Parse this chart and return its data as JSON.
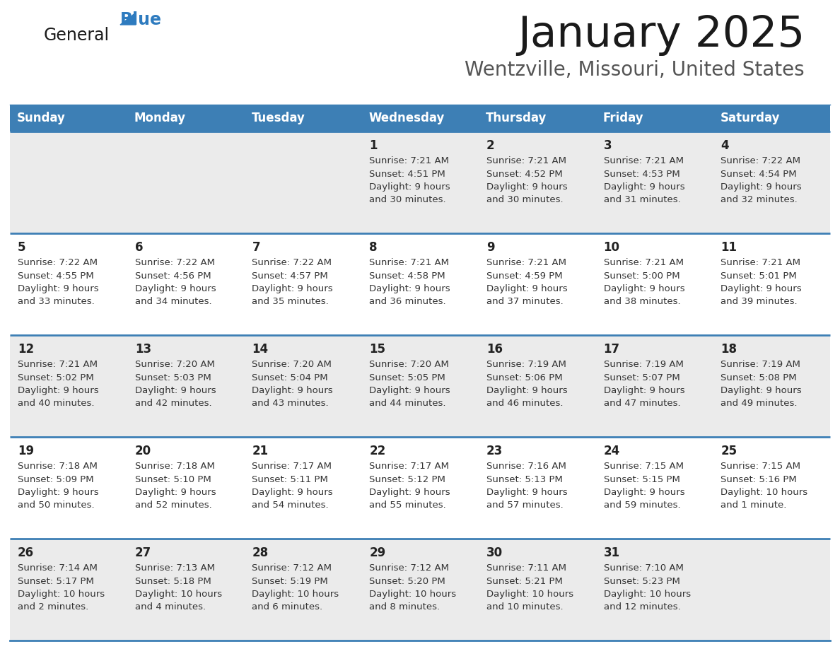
{
  "title": "January 2025",
  "subtitle": "Wentzville, Missouri, United States",
  "header_bg_color": "#3d7fb5",
  "header_text_color": "#ffffff",
  "cell_bg_light": "#ebebeb",
  "cell_bg_white": "#ffffff",
  "day_number_color": "#222222",
  "cell_text_color": "#333333",
  "divider_color": "#3d7fb5",
  "logo_general_color": "#1a1a1a",
  "logo_blue_color": "#2e7bbf",
  "logo_triangle_color": "#2e7bbf",
  "days_of_week": [
    "Sunday",
    "Monday",
    "Tuesday",
    "Wednesday",
    "Thursday",
    "Friday",
    "Saturday"
  ],
  "calendar_data": [
    [
      {
        "day": "",
        "sunrise": "",
        "sunset": "",
        "daylight": ""
      },
      {
        "day": "",
        "sunrise": "",
        "sunset": "",
        "daylight": ""
      },
      {
        "day": "",
        "sunrise": "",
        "sunset": "",
        "daylight": ""
      },
      {
        "day": "1",
        "sunrise": "7:21 AM",
        "sunset": "4:51 PM",
        "daylight": "9 hours\nand 30 minutes."
      },
      {
        "day": "2",
        "sunrise": "7:21 AM",
        "sunset": "4:52 PM",
        "daylight": "9 hours\nand 30 minutes."
      },
      {
        "day": "3",
        "sunrise": "7:21 AM",
        "sunset": "4:53 PM",
        "daylight": "9 hours\nand 31 minutes."
      },
      {
        "day": "4",
        "sunrise": "7:22 AM",
        "sunset": "4:54 PM",
        "daylight": "9 hours\nand 32 minutes."
      }
    ],
    [
      {
        "day": "5",
        "sunrise": "7:22 AM",
        "sunset": "4:55 PM",
        "daylight": "9 hours\nand 33 minutes."
      },
      {
        "day": "6",
        "sunrise": "7:22 AM",
        "sunset": "4:56 PM",
        "daylight": "9 hours\nand 34 minutes."
      },
      {
        "day": "7",
        "sunrise": "7:22 AM",
        "sunset": "4:57 PM",
        "daylight": "9 hours\nand 35 minutes."
      },
      {
        "day": "8",
        "sunrise": "7:21 AM",
        "sunset": "4:58 PM",
        "daylight": "9 hours\nand 36 minutes."
      },
      {
        "day": "9",
        "sunrise": "7:21 AM",
        "sunset": "4:59 PM",
        "daylight": "9 hours\nand 37 minutes."
      },
      {
        "day": "10",
        "sunrise": "7:21 AM",
        "sunset": "5:00 PM",
        "daylight": "9 hours\nand 38 minutes."
      },
      {
        "day": "11",
        "sunrise": "7:21 AM",
        "sunset": "5:01 PM",
        "daylight": "9 hours\nand 39 minutes."
      }
    ],
    [
      {
        "day": "12",
        "sunrise": "7:21 AM",
        "sunset": "5:02 PM",
        "daylight": "9 hours\nand 40 minutes."
      },
      {
        "day": "13",
        "sunrise": "7:20 AM",
        "sunset": "5:03 PM",
        "daylight": "9 hours\nand 42 minutes."
      },
      {
        "day": "14",
        "sunrise": "7:20 AM",
        "sunset": "5:04 PM",
        "daylight": "9 hours\nand 43 minutes."
      },
      {
        "day": "15",
        "sunrise": "7:20 AM",
        "sunset": "5:05 PM",
        "daylight": "9 hours\nand 44 minutes."
      },
      {
        "day": "16",
        "sunrise": "7:19 AM",
        "sunset": "5:06 PM",
        "daylight": "9 hours\nand 46 minutes."
      },
      {
        "day": "17",
        "sunrise": "7:19 AM",
        "sunset": "5:07 PM",
        "daylight": "9 hours\nand 47 minutes."
      },
      {
        "day": "18",
        "sunrise": "7:19 AM",
        "sunset": "5:08 PM",
        "daylight": "9 hours\nand 49 minutes."
      }
    ],
    [
      {
        "day": "19",
        "sunrise": "7:18 AM",
        "sunset": "5:09 PM",
        "daylight": "9 hours\nand 50 minutes."
      },
      {
        "day": "20",
        "sunrise": "7:18 AM",
        "sunset": "5:10 PM",
        "daylight": "9 hours\nand 52 minutes."
      },
      {
        "day": "21",
        "sunrise": "7:17 AM",
        "sunset": "5:11 PM",
        "daylight": "9 hours\nand 54 minutes."
      },
      {
        "day": "22",
        "sunrise": "7:17 AM",
        "sunset": "5:12 PM",
        "daylight": "9 hours\nand 55 minutes."
      },
      {
        "day": "23",
        "sunrise": "7:16 AM",
        "sunset": "5:13 PM",
        "daylight": "9 hours\nand 57 minutes."
      },
      {
        "day": "24",
        "sunrise": "7:15 AM",
        "sunset": "5:15 PM",
        "daylight": "9 hours\nand 59 minutes."
      },
      {
        "day": "25",
        "sunrise": "7:15 AM",
        "sunset": "5:16 PM",
        "daylight": "10 hours\nand 1 minute."
      }
    ],
    [
      {
        "day": "26",
        "sunrise": "7:14 AM",
        "sunset": "5:17 PM",
        "daylight": "10 hours\nand 2 minutes."
      },
      {
        "day": "27",
        "sunrise": "7:13 AM",
        "sunset": "5:18 PM",
        "daylight": "10 hours\nand 4 minutes."
      },
      {
        "day": "28",
        "sunrise": "7:12 AM",
        "sunset": "5:19 PM",
        "daylight": "10 hours\nand 6 minutes."
      },
      {
        "day": "29",
        "sunrise": "7:12 AM",
        "sunset": "5:20 PM",
        "daylight": "10 hours\nand 8 minutes."
      },
      {
        "day": "30",
        "sunrise": "7:11 AM",
        "sunset": "5:21 PM",
        "daylight": "10 hours\nand 10 minutes."
      },
      {
        "day": "31",
        "sunrise": "7:10 AM",
        "sunset": "5:23 PM",
        "daylight": "10 hours\nand 12 minutes."
      },
      {
        "day": "",
        "sunrise": "",
        "sunset": "",
        "daylight": ""
      }
    ]
  ]
}
